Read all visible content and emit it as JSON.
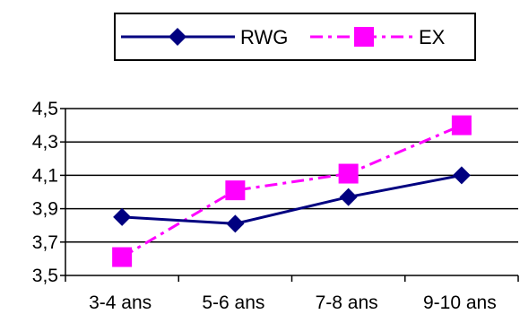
{
  "chart_data": {
    "type": "line",
    "categories": [
      "3-4 ans",
      "5-6 ans",
      "7-8 ans",
      "9-10 ans"
    ],
    "series": [
      {
        "name": "RWG",
        "values": [
          3.85,
          3.81,
          3.97,
          4.1
        ],
        "color": "#000080",
        "marker": "diamond",
        "line_style": "solid"
      },
      {
        "name": "EX",
        "values": [
          3.61,
          4.01,
          4.11,
          4.4
        ],
        "color": "#ff00ff",
        "marker": "square",
        "line_style": "dash-dot"
      }
    ],
    "y_tick_labels": [
      "3,5",
      "3,7",
      "3,9",
      "4,1",
      "4,3",
      "4,5"
    ],
    "ylim": [
      3.5,
      4.5
    ],
    "grid": true,
    "legend_position": "top"
  }
}
